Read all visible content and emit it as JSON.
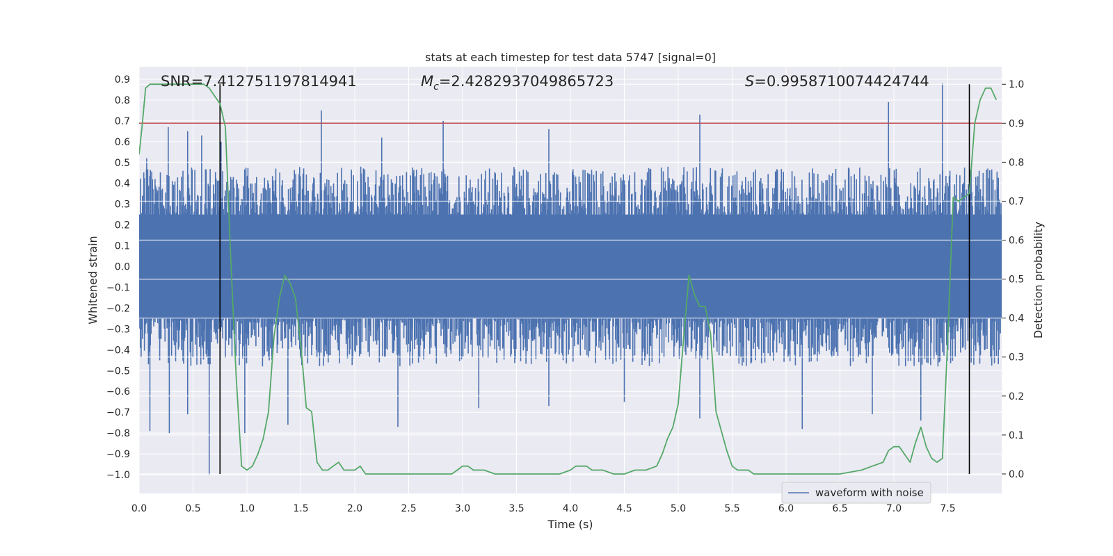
{
  "chart_data": {
    "type": "line",
    "title": "stats at each timestep for test data 5747 [signal=0]",
    "xlabel": "Time (s)",
    "ylabel_left": "Whitened strain",
    "ylabel_right": "Detection probability",
    "xlim": [
      0,
      8.0
    ],
    "ylim_left": [
      -1.09,
      0.96
    ],
    "ylim_right": [
      -0.05,
      1.045
    ],
    "x_ticks": [
      0.0,
      0.5,
      1.0,
      1.5,
      2.0,
      2.5,
      3.0,
      3.5,
      4.0,
      4.5,
      5.0,
      5.5,
      6.0,
      6.5,
      7.0,
      7.5
    ],
    "x_tick_labels": [
      "0.0",
      "0.5",
      "1.0",
      "1.5",
      "2.0",
      "2.5",
      "3.0",
      "3.5",
      "4.0",
      "4.5",
      "5.0",
      "5.5",
      "6.0",
      "6.5",
      "7.0",
      "7.5"
    ],
    "y_left_ticks": [
      0.9,
      0.8,
      0.7,
      0.6,
      0.5,
      0.4,
      0.3,
      0.2,
      0.1,
      0.0,
      -0.1,
      -0.2,
      -0.3,
      -0.4,
      -0.5,
      -0.6,
      -0.7,
      -0.8,
      -0.9,
      -1.0
    ],
    "y_left_tick_labels": [
      "0.9",
      "0.8",
      "0.7",
      "0.6",
      "0.5",
      "0.4",
      "0.3",
      "0.2",
      "0.1",
      "0.0",
      "−0.1",
      "−0.2",
      "−0.3",
      "−0.4",
      "−0.5",
      "−0.6",
      "−0.7",
      "−0.8",
      "−0.9",
      "−1.0"
    ],
    "y_right_ticks": [
      1.0,
      0.9,
      0.8,
      0.7,
      0.6,
      0.5,
      0.4,
      0.3,
      0.2,
      0.1,
      0.0
    ],
    "y_right_tick_labels": [
      "1.0",
      "0.9",
      "0.8",
      "0.7",
      "0.6",
      "0.5",
      "0.4",
      "0.3",
      "0.2",
      "0.1",
      "0.0"
    ],
    "annotations": {
      "snr": "SNR=7.412751197814941",
      "mc_symbol": "M",
      "mc_sub": "c",
      "mc_value": "=2.4282937049865723",
      "s_symbol": "S",
      "s_value": "=0.9958710074424744"
    },
    "threshold": {
      "value": 0.9,
      "axis": "right",
      "color": "#c44e52"
    },
    "vertical_markers": [
      0.75,
      7.7
    ],
    "series": [
      {
        "name": "waveform with noise",
        "color": "#4c72b0",
        "axis": "left",
        "note": "noise-like strain, envelope roughly -0.45..0.45 with spikes; drawn as dense vertical strokes",
        "spikes": [
          {
            "x": 0.07,
            "y": 0.52
          },
          {
            "x": 0.1,
            "y": -0.79
          },
          {
            "x": 0.27,
            "y": 0.67
          },
          {
            "x": 0.28,
            "y": -0.8
          },
          {
            "x": 0.45,
            "y": 0.65
          },
          {
            "x": 0.45,
            "y": -0.71
          },
          {
            "x": 0.58,
            "y": 0.63
          },
          {
            "x": 0.65,
            "y": -1.0
          },
          {
            "x": 0.76,
            "y": 0.6
          },
          {
            "x": 0.98,
            "y": -0.8
          },
          {
            "x": 1.38,
            "y": -0.76
          },
          {
            "x": 1.69,
            "y": 0.75
          },
          {
            "x": 2.25,
            "y": 0.62
          },
          {
            "x": 2.4,
            "y": -0.77
          },
          {
            "x": 2.82,
            "y": 0.7
          },
          {
            "x": 3.15,
            "y": -0.68
          },
          {
            "x": 3.8,
            "y": 0.66
          },
          {
            "x": 3.8,
            "y": -0.67
          },
          {
            "x": 4.5,
            "y": -0.65
          },
          {
            "x": 5.2,
            "y": 0.73
          },
          {
            "x": 5.2,
            "y": -0.73
          },
          {
            "x": 6.15,
            "y": -0.78
          },
          {
            "x": 6.8,
            "y": -0.71
          },
          {
            "x": 6.95,
            "y": 0.79
          },
          {
            "x": 7.25,
            "y": -0.74
          },
          {
            "x": 7.45,
            "y": 0.88
          }
        ]
      },
      {
        "name": "detection probability",
        "color": "#55a868",
        "axis": "right",
        "x": [
          0.0,
          0.03,
          0.06,
          0.1,
          0.2,
          0.3,
          0.4,
          0.5,
          0.6,
          0.65,
          0.7,
          0.75,
          0.8,
          0.85,
          0.9,
          0.95,
          1.0,
          1.05,
          1.1,
          1.15,
          1.2,
          1.25,
          1.3,
          1.35,
          1.4,
          1.45,
          1.5,
          1.55,
          1.6,
          1.65,
          1.7,
          1.75,
          1.8,
          1.85,
          1.9,
          1.95,
          2.0,
          2.05,
          2.1,
          2.15,
          2.2,
          2.25,
          2.3,
          2.5,
          2.7,
          2.9,
          2.95,
          3.0,
          3.05,
          3.1,
          3.15,
          3.2,
          3.3,
          3.4,
          3.6,
          3.8,
          3.9,
          4.0,
          4.05,
          4.1,
          4.15,
          4.2,
          4.3,
          4.4,
          4.5,
          4.6,
          4.7,
          4.8,
          4.85,
          4.9,
          4.95,
          5.0,
          5.05,
          5.1,
          5.15,
          5.2,
          5.25,
          5.3,
          5.35,
          5.4,
          5.45,
          5.5,
          5.55,
          5.6,
          5.65,
          5.7,
          5.75,
          5.8,
          5.9,
          6.0,
          6.2,
          6.5,
          6.7,
          6.8,
          6.9,
          6.95,
          7.0,
          7.05,
          7.1,
          7.15,
          7.2,
          7.25,
          7.3,
          7.35,
          7.4,
          7.45,
          7.5,
          7.55,
          7.6,
          7.65,
          7.7,
          7.75,
          7.8,
          7.85,
          7.9,
          7.95
        ],
        "y": [
          0.82,
          0.9,
          0.99,
          1.0,
          1.0,
          1.0,
          1.0,
          1.0,
          1.0,
          0.99,
          0.97,
          0.95,
          0.89,
          0.55,
          0.25,
          0.02,
          0.01,
          0.02,
          0.05,
          0.09,
          0.16,
          0.35,
          0.45,
          0.51,
          0.49,
          0.45,
          0.33,
          0.17,
          0.16,
          0.03,
          0.01,
          0.01,
          0.02,
          0.03,
          0.01,
          0.01,
          0.01,
          0.02,
          0.0,
          0.0,
          0.0,
          0.0,
          0.0,
          0.0,
          0.0,
          0.0,
          0.01,
          0.02,
          0.02,
          0.01,
          0.01,
          0.01,
          0.0,
          0.0,
          0.0,
          0.0,
          0.0,
          0.01,
          0.02,
          0.02,
          0.02,
          0.01,
          0.01,
          0.0,
          0.0,
          0.01,
          0.01,
          0.02,
          0.05,
          0.09,
          0.12,
          0.18,
          0.35,
          0.51,
          0.46,
          0.43,
          0.43,
          0.36,
          0.16,
          0.11,
          0.06,
          0.02,
          0.01,
          0.01,
          0.01,
          0.0,
          0.0,
          0.0,
          0.0,
          0.0,
          0.0,
          0.0,
          0.01,
          0.02,
          0.03,
          0.06,
          0.07,
          0.07,
          0.05,
          0.03,
          0.08,
          0.12,
          0.07,
          0.04,
          0.03,
          0.04,
          0.35,
          0.71,
          0.7,
          0.71,
          0.72,
          0.9,
          0.96,
          0.99,
          0.99,
          0.96
        ]
      }
    ],
    "legend": {
      "label": "waveform with noise",
      "placement": "bottom-right"
    }
  }
}
